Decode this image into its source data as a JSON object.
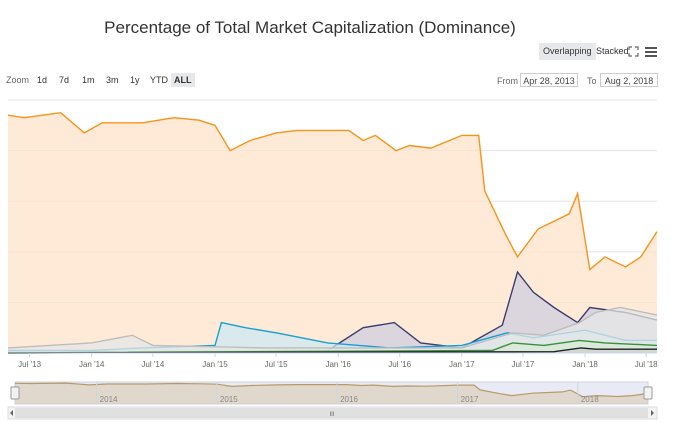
{
  "title": "Percentage of Total Market Capitalization (Dominance)",
  "modes": {
    "overlapping": "Overlapping",
    "stacked": "Stacked"
  },
  "zoom": {
    "label": "Zoom",
    "buttons": [
      "1d",
      "7d",
      "1m",
      "3m",
      "1y",
      "YTD",
      "ALL"
    ],
    "active": "ALL"
  },
  "range": {
    "from_label": "From",
    "from_value": "Apr 28, 2013",
    "to_label": "To",
    "to_value": "Aug 2, 2018"
  },
  "icons": {
    "fullscreen": "expand-icon",
    "menu": "hamburger-menu-icon"
  },
  "navigator": {
    "years": [
      "2014",
      "2015",
      "2016",
      "2017",
      "2018"
    ],
    "scroll_grip": "III"
  },
  "chart_data": {
    "type": "area",
    "title": "Percentage of Total Market Capitalization (Dominance)",
    "xlabel": "",
    "ylabel": "",
    "x_ticks": [
      "Jul '13",
      "Jan '14",
      "Jul '14",
      "Jan '15",
      "Jul '15",
      "Jan '16",
      "Jul '16",
      "Jan '17",
      "Jul '17",
      "Jan '18",
      "Jul '18"
    ],
    "x_range": [
      "2013-04-28",
      "2018-08-02"
    ],
    "ylim": [
      0,
      100
    ],
    "grid": true,
    "series": [
      {
        "color": "#f7931a",
        "fill": "#fde3c8",
        "points": [
          [
            "2013-04-28",
            94
          ],
          [
            "2013-06-15",
            93
          ],
          [
            "2013-10-01",
            95
          ],
          [
            "2013-12-10",
            87
          ],
          [
            "2014-02-01",
            91
          ],
          [
            "2014-06-01",
            91
          ],
          [
            "2014-09-01",
            93
          ],
          [
            "2014-11-15",
            92
          ],
          [
            "2015-01-01",
            90
          ],
          [
            "2015-02-15",
            80
          ],
          [
            "2015-04-15",
            84
          ],
          [
            "2015-07-01",
            87
          ],
          [
            "2015-09-01",
            88
          ],
          [
            "2015-12-01",
            88
          ],
          [
            "2016-02-01",
            88
          ],
          [
            "2016-03-15",
            84
          ],
          [
            "2016-04-20",
            86
          ],
          [
            "2016-06-20",
            80
          ],
          [
            "2016-07-30",
            82
          ],
          [
            "2016-10-01",
            81
          ],
          [
            "2017-01-01",
            86
          ],
          [
            "2017-02-20",
            86
          ],
          [
            "2017-03-10",
            64
          ],
          [
            "2017-05-10",
            47
          ],
          [
            "2017-06-15",
            38
          ],
          [
            "2017-08-15",
            49
          ],
          [
            "2017-11-15",
            55
          ],
          [
            "2017-12-10",
            63
          ],
          [
            "2018-01-15",
            33
          ],
          [
            "2018-03-01",
            38
          ],
          [
            "2018-05-01",
            34
          ],
          [
            "2018-06-15",
            38
          ],
          [
            "2018-08-02",
            48
          ]
        ]
      },
      {
        "color": "#3c3c6e",
        "fill": "#cfcfe0",
        "points": [
          [
            "2013-04-28",
            0
          ],
          [
            "2015-12-01",
            1
          ],
          [
            "2016-03-15",
            10
          ],
          [
            "2016-06-15",
            12
          ],
          [
            "2016-09-01",
            4
          ],
          [
            "2017-01-01",
            2
          ],
          [
            "2017-05-01",
            11
          ],
          [
            "2017-06-15",
            32
          ],
          [
            "2017-08-01",
            24
          ],
          [
            "2017-10-01",
            18
          ],
          [
            "2017-12-10",
            12
          ],
          [
            "2018-01-15",
            18
          ],
          [
            "2018-05-01",
            16
          ],
          [
            "2018-08-02",
            13
          ]
        ]
      },
      {
        "color": "#1a9ecf",
        "fill": "#cde9f3",
        "points": [
          [
            "2013-04-28",
            1
          ],
          [
            "2014-01-01",
            1
          ],
          [
            "2014-06-01",
            2
          ],
          [
            "2015-01-01",
            3
          ],
          [
            "2015-01-20",
            12
          ],
          [
            "2015-04-01",
            10
          ],
          [
            "2015-07-01",
            8
          ],
          [
            "2015-12-01",
            4
          ],
          [
            "2016-06-01",
            2
          ],
          [
            "2017-01-01",
            3
          ],
          [
            "2017-05-15",
            8
          ],
          [
            "2017-08-01",
            6
          ],
          [
            "2018-01-01",
            9
          ],
          [
            "2018-05-01",
            5
          ],
          [
            "2018-08-02",
            5
          ]
        ]
      },
      {
        "color": "#bdbdbd",
        "fill": "#e6e6e6",
        "points": [
          [
            "2013-04-28",
            2
          ],
          [
            "2014-01-01",
            4
          ],
          [
            "2014-05-01",
            7
          ],
          [
            "2014-07-01",
            3
          ],
          [
            "2015-06-01",
            2
          ],
          [
            "2016-06-01",
            2
          ],
          [
            "2017-01-01",
            2
          ],
          [
            "2017-06-01",
            8
          ],
          [
            "2017-09-01",
            7
          ],
          [
            "2017-12-15",
            12
          ],
          [
            "2018-02-01",
            16
          ],
          [
            "2018-04-15",
            18
          ],
          [
            "2018-08-02",
            15
          ]
        ]
      },
      {
        "color": "#3a8f3a",
        "fill": "#d6ead6",
        "points": [
          [
            "2013-04-28",
            0
          ],
          [
            "2017-04-01",
            1
          ],
          [
            "2017-06-01",
            4
          ],
          [
            "2017-09-01",
            3
          ],
          [
            "2017-12-15",
            5
          ],
          [
            "2018-03-01",
            4
          ],
          [
            "2018-08-02",
            3
          ]
        ]
      },
      {
        "color": "#222222",
        "fill": "#d0d0d0",
        "points": [
          [
            "2013-04-28",
            0
          ],
          [
            "2017-10-01",
            0.5
          ],
          [
            "2017-12-20",
            2
          ],
          [
            "2018-02-01",
            1.5
          ],
          [
            "2018-08-02",
            1.5
          ]
        ]
      }
    ]
  }
}
